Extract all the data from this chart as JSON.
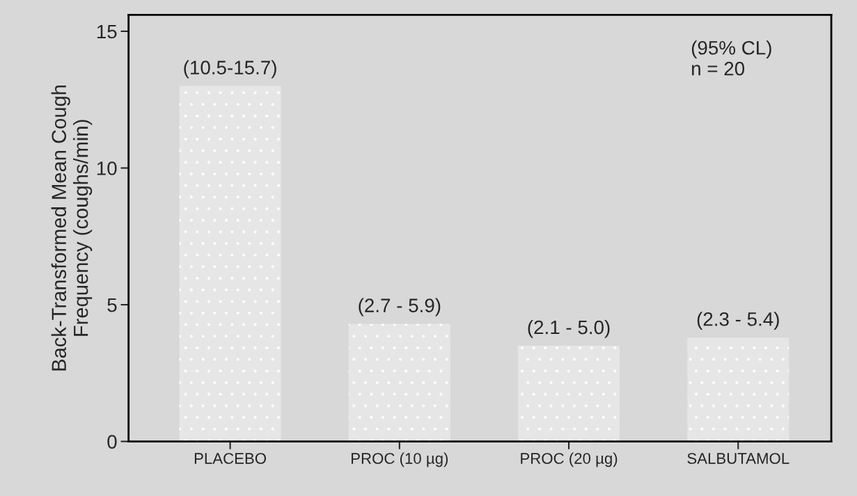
{
  "chart_data": {
    "type": "bar",
    "ylabel": "Back-Transformed Mean Cough\nFrequency (coughs/min)",
    "categories": [
      "PLACEBO",
      "PROC (10 µg)",
      "PROC (20 µg)",
      "SALBUTAMOL"
    ],
    "values": [
      13.0,
      4.3,
      3.5,
      3.8
    ],
    "value_labels": [
      "(10.5-15.7)",
      "(2.7 - 5.9)",
      "(2.1 - 5.0)",
      "(2.3 - 5.4)"
    ],
    "color": "#e6e6e6",
    "ylim": [
      0,
      15.6
    ],
    "yticks": [
      0,
      5,
      10,
      15
    ],
    "grid": false,
    "annotations": [
      "(95% CL)\nn = 20"
    ]
  }
}
